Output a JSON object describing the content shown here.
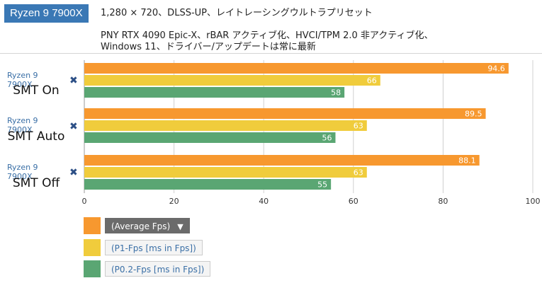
{
  "title": "Ryzen 9 7900X",
  "subtitle_line1": "1,280 × 720、DLSS-UP、レイトレーシングウルトラプリセット",
  "subtitle_line2": "PNY RTX 4090 Epic-X、rBAR アクティブ化、HVCI/TPM 2.0 非アクティブ化、",
  "subtitle_line3": "Windows 11、ドライバー/アップデートは常に最新",
  "colors": {
    "average": "#f7982f",
    "p1": "#f0cc3c",
    "p02": "#5aa673",
    "badge": "#3a78b5"
  },
  "legend": {
    "average": "(Average Fps)",
    "p1": "(P1-Fps [ms in Fps])",
    "p02": "(P0.2-Fps [ms in Fps])"
  },
  "chart_data": {
    "type": "bar",
    "orientation": "horizontal",
    "categories": [
      {
        "cpu": "Ryzen 9 7900X",
        "config": "SMT On"
      },
      {
        "cpu": "Ryzen 9 7900X",
        "config": "SMT Auto"
      },
      {
        "cpu": "Ryzen 9 7900X",
        "config": "SMT Off"
      }
    ],
    "series": [
      {
        "name": "(Average Fps)",
        "values": [
          94.6,
          89.5,
          88.1
        ]
      },
      {
        "name": "(P1-Fps [ms in Fps])",
        "values": [
          66,
          63,
          63
        ]
      },
      {
        "name": "(P0.2-Fps [ms in Fps])",
        "values": [
          58,
          56,
          55
        ]
      }
    ],
    "xlim": [
      0,
      100
    ],
    "xticks": [
      "0",
      "20",
      "40",
      "60",
      "80",
      "100"
    ],
    "grid": true,
    "legend": "bottom-left"
  }
}
